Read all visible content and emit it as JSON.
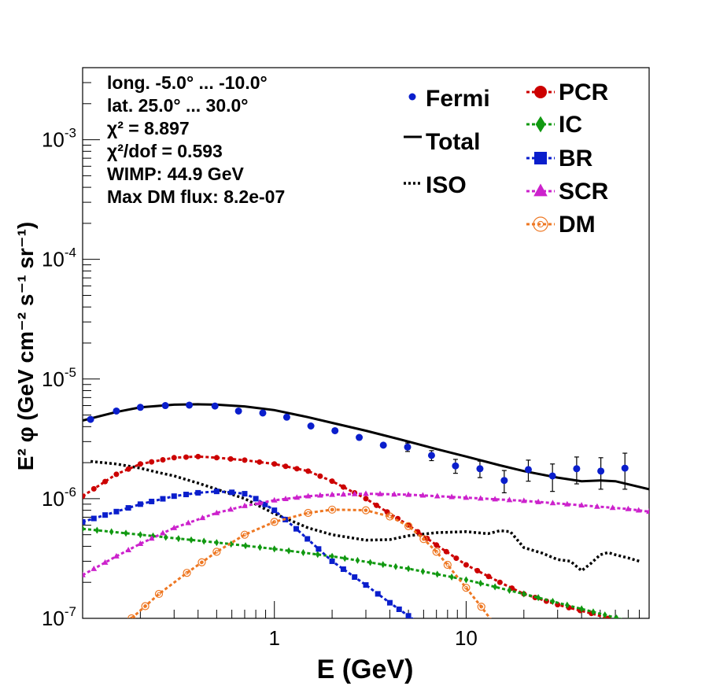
{
  "chart_data": {
    "type": "line",
    "xlabel": "E (GeV)",
    "ylabel": "E² φ (GeV cm⁻² s⁻¹ sr⁻¹)",
    "x_scale": "log",
    "y_scale": "log",
    "xlim": [
      0.1,
      90
    ],
    "ylim": [
      1e-07,
      0.004
    ],
    "x_tick_labels": [
      {
        "v": 1,
        "label": "1"
      },
      {
        "v": 10,
        "label": "10"
      }
    ],
    "y_tick_labels": [
      {
        "v": 1e-07,
        "m": "10",
        "e": "-7"
      },
      {
        "v": 1e-06,
        "m": "10",
        "e": "-6"
      },
      {
        "v": 1e-05,
        "m": "10",
        "e": "-5"
      },
      {
        "v": 0.0001,
        "m": "10",
        "e": "-4"
      },
      {
        "v": 0.001,
        "m": "10",
        "e": "-3"
      }
    ],
    "annotations": [
      "long. -5.0° ... -10.0°",
      "lat. 25.0° ... 30.0°",
      "χ² = 8.897",
      "χ²/dof = 0.593",
      "WIMP: 44.9 GeV",
      "Max DM flux: 8.2e-07"
    ],
    "legend_left": [
      {
        "key": "fermi",
        "label": "Fermi"
      },
      {
        "key": "total",
        "label": "Total"
      },
      {
        "key": "iso",
        "label": "ISO"
      }
    ],
    "legend_right": [
      {
        "key": "pcr",
        "label": "PCR"
      },
      {
        "key": "ic",
        "label": "IC"
      },
      {
        "key": "br",
        "label": "BR"
      },
      {
        "key": "scr",
        "label": "SCR"
      },
      {
        "key": "dm",
        "label": "DM"
      }
    ],
    "colors": {
      "fermi": "#0a1ecc",
      "total": "#000000",
      "iso": "#000000",
      "pcr": "#cc0000",
      "ic": "#119911",
      "br": "#0a1ecc",
      "scr": "#cc22cc",
      "dm": "#ee7722"
    },
    "series": [
      {
        "key": "fermi",
        "type": "points",
        "x": [
          0.11,
          0.15,
          0.2,
          0.27,
          0.36,
          0.49,
          0.65,
          0.87,
          1.16,
          1.55,
          2.07,
          2.77,
          3.7,
          4.95,
          6.6,
          8.8,
          11.8,
          15.8,
          21.1,
          28.2,
          37.7,
          50.4,
          67.3
        ],
        "y": [
          4.6e-06,
          5.4e-06,
          5.8e-06,
          6e-06,
          6.05e-06,
          5.95e-06,
          5.4e-06,
          5.2e-06,
          4.8e-06,
          4.05e-06,
          3.7e-06,
          3.25e-06,
          2.8e-06,
          2.7e-06,
          2.3e-06,
          1.88e-06,
          1.78e-06,
          1.42e-06,
          1.75e-06,
          1.55e-06,
          1.78e-06,
          1.7e-06,
          1.8e-06
        ],
        "yerr": [
          0,
          0,
          0,
          0,
          0,
          0,
          0,
          0,
          0,
          0,
          0,
          0,
          0,
          2.2e-07,
          2.2e-07,
          2.5e-07,
          2.8e-07,
          3e-07,
          3.5e-07,
          4e-07,
          4.5e-07,
          5e-07,
          6e-07
        ]
      },
      {
        "key": "total",
        "type": "line",
        "x": [
          0.1,
          0.15,
          0.2,
          0.3,
          0.4,
          0.5,
          0.7,
          1,
          1.5,
          2,
          3,
          5,
          7,
          10,
          15,
          20,
          30,
          40,
          50,
          60,
          70,
          90
        ],
        "y": [
          4.5e-06,
          5.3e-06,
          5.8e-06,
          6.1e-06,
          6.15e-06,
          6.1e-06,
          5.9e-06,
          5.5e-06,
          4.8e-06,
          4.3e-06,
          3.7e-06,
          3e-06,
          2.6e-06,
          2.25e-06,
          1.9e-06,
          1.7e-06,
          1.5e-06,
          1.4e-06,
          1.42e-06,
          1.4e-06,
          1.32e-06,
          1.2e-06
        ]
      },
      {
        "key": "iso",
        "type": "dotted",
        "x": [
          0.11,
          0.15,
          0.2,
          0.25,
          0.3,
          0.4,
          0.5,
          0.7,
          1,
          1.5,
          2,
          3,
          4,
          5,
          7,
          10,
          13,
          15,
          17,
          20,
          25,
          30,
          35,
          40,
          45,
          50,
          55,
          60,
          70,
          80
        ],
        "y": [
          2.05e-06,
          1.95e-06,
          1.8e-06,
          1.65e-06,
          1.55e-06,
          1.35e-06,
          1.2e-06,
          1e-06,
          7.5e-07,
          5.7e-07,
          5e-07,
          4.5e-07,
          4.55e-07,
          4.9e-07,
          5.2e-07,
          5.3e-07,
          5.1e-07,
          5.4e-07,
          5.3e-07,
          3.9e-07,
          3.5e-07,
          3.1e-07,
          3e-07,
          2.5e-07,
          2.9e-07,
          3.4e-07,
          3.55e-07,
          3.4e-07,
          3.2e-07,
          3e-07
        ]
      },
      {
        "key": "pcr",
        "type": "marked",
        "x": [
          0.1,
          0.15,
          0.2,
          0.3,
          0.4,
          0.5,
          0.7,
          1,
          1.5,
          2,
          3,
          5,
          7,
          10,
          15,
          20,
          30,
          45,
          55
        ],
        "y": [
          1.05e-06,
          1.6e-06,
          1.95e-06,
          2.2e-06,
          2.25e-06,
          2.2e-06,
          2.1e-06,
          1.95e-06,
          1.7e-06,
          1.4e-06,
          1e-06,
          6e-07,
          4.1e-07,
          2.8e-07,
          2e-07,
          1.6e-07,
          1.3e-07,
          1.1e-07,
          1e-07
        ]
      },
      {
        "key": "ic",
        "type": "marked",
        "x": [
          0.1,
          0.2,
          0.5,
          1,
          2,
          5,
          10,
          20,
          40,
          70
        ],
        "y": [
          5.6e-07,
          5e-07,
          4.3e-07,
          3.8e-07,
          3.3e-07,
          2.6e-07,
          2.1e-07,
          1.6e-07,
          1.2e-07,
          9.5e-08
        ]
      },
      {
        "key": "br",
        "type": "marked",
        "x": [
          0.1,
          0.15,
          0.2,
          0.3,
          0.4,
          0.5,
          0.6,
          0.7,
          0.8,
          1,
          1.3,
          1.7,
          2,
          3,
          4,
          5,
          6
        ],
        "y": [
          6.4e-07,
          7.8e-07,
          9e-07,
          1.05e-06,
          1.12e-06,
          1.15e-06,
          1.13e-06,
          1.1e-06,
          1e-06,
          8e-07,
          5.6e-07,
          3.8e-07,
          3e-07,
          1.9e-07,
          1.35e-07,
          1.05e-07,
          8.5e-08
        ]
      },
      {
        "key": "scr",
        "type": "marked",
        "x": [
          0.1,
          0.15,
          0.2,
          0.3,
          0.5,
          0.7,
          1,
          1.5,
          2,
          3,
          5,
          10,
          20,
          40,
          70,
          90
        ],
        "y": [
          2.3e-07,
          3.3e-07,
          4.2e-07,
          5.7e-07,
          7.6e-07,
          8.7e-07,
          9.7e-07,
          1.05e-06,
          1.08e-06,
          1.1e-06,
          1.08e-06,
          1.02e-06,
          9.6e-07,
          8.8e-07,
          8.2e-07,
          7.8e-07
        ]
      },
      {
        "key": "dm",
        "type": "open",
        "x": [
          0.18,
          0.25,
          0.35,
          0.5,
          0.7,
          1,
          1.5,
          2,
          3,
          4,
          5,
          6,
          7,
          8,
          10,
          12,
          14
        ],
        "y": [
          1e-07,
          1.6e-07,
          2.4e-07,
          3.6e-07,
          5e-07,
          6.4e-07,
          7.6e-07,
          8.1e-07,
          8e-07,
          7.1e-07,
          5.9e-07,
          4.6e-07,
          3.6e-07,
          2.8e-07,
          1.8e-07,
          1.25e-07,
          9e-08
        ]
      }
    ]
  }
}
